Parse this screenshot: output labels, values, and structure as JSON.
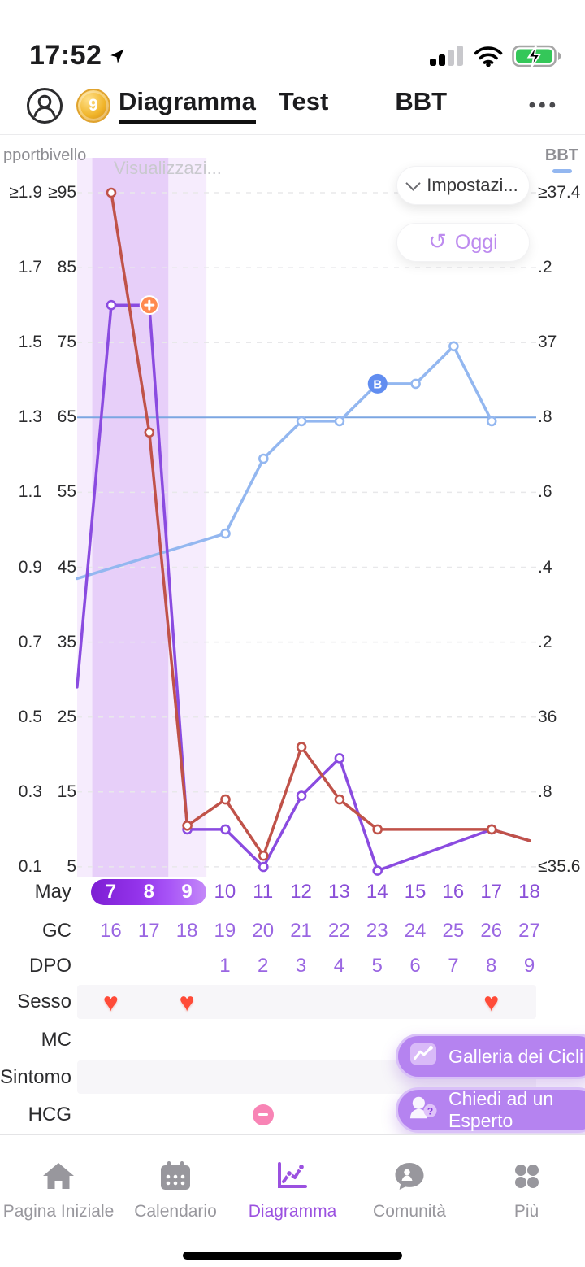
{
  "status_bar": {
    "time": "17:52"
  },
  "header": {
    "badge_count": "9",
    "tab_diagramma": "Diagramma",
    "tab_test": "Test",
    "tab_bbt": "BBT",
    "more_label": "•••"
  },
  "chart_header": {
    "left_axis_title": "pportbivello",
    "right_axis_title": "BBT",
    "watermark": "Visualizzazi...",
    "settings_label": "Impostazi...",
    "today_label": "Oggi"
  },
  "chart_data": {
    "type": "line",
    "x_label_month": "May",
    "days": [
      7,
      8,
      9,
      10,
      11,
      12,
      13,
      14,
      15,
      16,
      17,
      18
    ],
    "highlighted_days": [
      7,
      8,
      9
    ],
    "left_axis_ratio_labels": [
      "≥1.9",
      "1.7",
      "1.5",
      "1.3",
      "1.1",
      "0.9",
      "0.7",
      "0.5",
      "0.3",
      "0.1"
    ],
    "left_axis_level_labels": [
      "≥95",
      "85",
      "75",
      "65",
      "55",
      "45",
      "35",
      "25",
      "15",
      "5"
    ],
    "right_axis_labels": [
      "≥37.4",
      ".2",
      "37",
      ".8",
      ".6",
      ".4",
      ".2",
      "36",
      ".8",
      "≤35.6"
    ],
    "right_axis_range": [
      35.6,
      37.4
    ],
    "left_level_range": [
      5,
      95
    ],
    "coverline_bbt": 36.8,
    "fertile_window_days": [
      7,
      9.5
    ],
    "series": [
      {
        "name": "bbt-line",
        "axis": "bbt",
        "color": "#93b7f0",
        "edge_start": [
          6.1,
          36.37
        ],
        "points": [
          [
            10,
            36.49
          ],
          [
            11,
            36.69
          ],
          [
            12,
            36.79
          ],
          [
            13,
            36.79
          ],
          [
            14,
            36.89
          ],
          [
            15,
            36.89
          ],
          [
            16,
            36.99
          ],
          [
            17,
            36.79
          ]
        ],
        "marker_days": [
          10,
          11,
          12,
          13,
          15,
          16,
          17
        ],
        "b_marker_day": 14
      },
      {
        "name": "test-line-purple",
        "axis": "level",
        "color": "#8a4be0",
        "edge_start": [
          6.1,
          29
        ],
        "points": [
          [
            7,
            80
          ],
          [
            8,
            80
          ],
          [
            9,
            10
          ],
          [
            10,
            10
          ],
          [
            11,
            5
          ],
          [
            12,
            14.5
          ],
          [
            13,
            19.5
          ],
          [
            14,
            4.5
          ],
          [
            17,
            10
          ],
          [
            18,
            8.5
          ]
        ],
        "marker_days": [
          7,
          9,
          10,
          11,
          12,
          13,
          14,
          17
        ],
        "plus_marker_day": 8
      },
      {
        "name": "test-line-red",
        "axis": "level",
        "color": "#c05249",
        "points": [
          [
            7,
            95
          ],
          [
            8,
            63
          ],
          [
            9,
            10.5
          ],
          [
            10,
            14
          ],
          [
            11,
            6.5
          ],
          [
            12,
            21
          ],
          [
            13,
            14
          ],
          [
            14,
            10
          ],
          [
            17,
            10
          ],
          [
            18,
            8.5
          ]
        ],
        "marker_days": [
          7,
          8,
          9,
          10,
          11,
          12,
          13,
          14,
          17
        ]
      }
    ]
  },
  "day_rows": [
    {
      "label": "GC",
      "values": [
        "16",
        "17",
        "18",
        "19",
        "20",
        "21",
        "22",
        "23",
        "24",
        "25",
        "26",
        "27"
      ]
    },
    {
      "label": "DPO",
      "values": [
        "",
        "",
        "",
        "1",
        "2",
        "3",
        "4",
        "5",
        "6",
        "7",
        "8",
        "9"
      ]
    }
  ],
  "symbol_rows": [
    {
      "label": "Sesso",
      "type": "heart",
      "days": [
        7,
        9,
        17
      ]
    },
    {
      "label": "MC",
      "type": "none",
      "days": []
    },
    {
      "label": "Sintomo",
      "type": "none",
      "days": []
    },
    {
      "label": "HCG",
      "type": "minus",
      "days": [
        11
      ]
    }
  ],
  "fab": {
    "gallery_label": "Galleria dei Cicli",
    "expert_label": "Chiedi ad un Esperto"
  },
  "bottom_nav": {
    "items": [
      {
        "label": "Pagina Iniziale",
        "icon": "home-icon",
        "active": false
      },
      {
        "label": "Calendario",
        "icon": "calendar-icon",
        "active": false
      },
      {
        "label": "Diagramma",
        "icon": "chart-icon",
        "active": true
      },
      {
        "label": "Comunità",
        "icon": "community-icon",
        "active": false
      },
      {
        "label": "Più",
        "icon": "more-grid-icon",
        "active": false
      }
    ]
  },
  "colors": {
    "accent_purple": "#9b51e0",
    "bbt_blue": "#93b7f0",
    "test_red": "#c05249",
    "test_purple": "#8a4be0",
    "heart_red": "#ff4b38",
    "hcg_pink": "#f884b5",
    "fab_purple": "#b583f0",
    "battery_green": "#34c759"
  }
}
